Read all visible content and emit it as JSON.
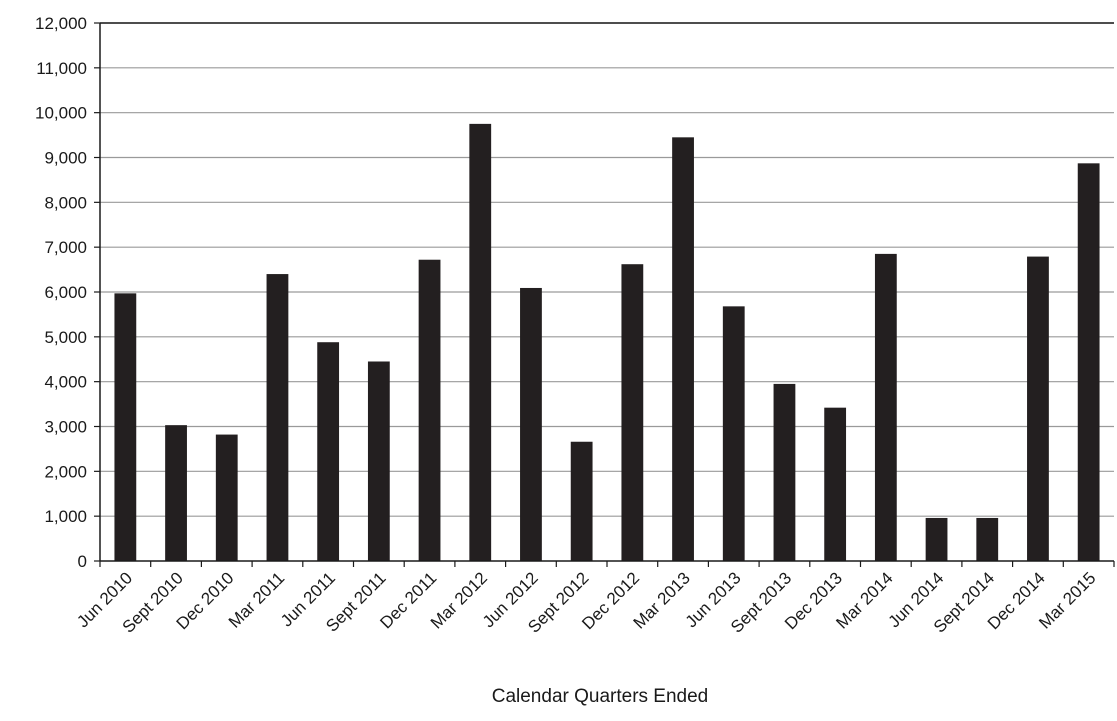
{
  "chart_data": {
    "type": "bar",
    "title": "",
    "xlabel": "Calendar Quarters Ended",
    "ylabel": "",
    "ylim": [
      0,
      12000
    ],
    "yticks": [
      "0",
      "1,000",
      "2,000",
      "3,000",
      "4,000",
      "5,000",
      "6,000",
      "7,000",
      "8,000",
      "9,000",
      "10,000",
      "11,000",
      "12,000"
    ],
    "grid": true,
    "legend": "none",
    "bar_color": "#231f20",
    "categories": [
      "Jun 2010",
      "Sept 2010",
      "Dec 2010",
      "Mar 2011",
      "Jun 2011",
      "Sept 2011",
      "Dec 2011",
      "Mar 2012",
      "Jun 2012",
      "Sept 2012",
      "Dec 2012",
      "Mar 2013",
      "Jun 2013",
      "Sept 2013",
      "Dec 2013",
      "Mar 2014",
      "Jun 2014",
      "Sept 2014",
      "Dec 2014",
      "Mar 2015"
    ],
    "values": [
      5970,
      3030,
      2820,
      6400,
      4880,
      4450,
      6720,
      9750,
      6090,
      2660,
      6620,
      9450,
      5680,
      3950,
      3420,
      6850,
      960,
      960,
      6790,
      8870
    ]
  }
}
